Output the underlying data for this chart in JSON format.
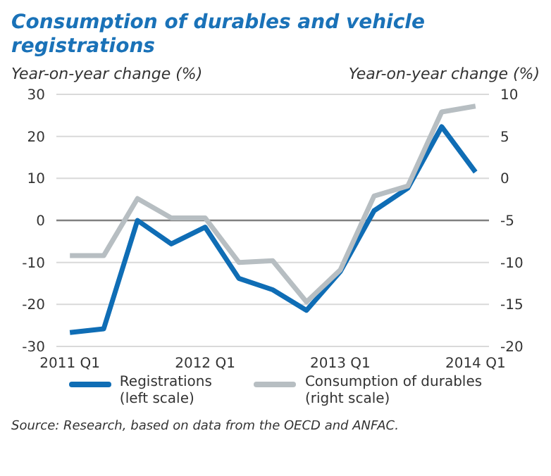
{
  "chart_data": {
    "type": "line",
    "title": "Consumption of durables and vehicle registrations",
    "ylabel": "Year-on-year change (%)",
    "y2label": "Year-on-year change (%)",
    "categories": [
      "2011 Q1",
      null,
      null,
      null,
      "2012 Q1",
      null,
      null,
      null,
      "2013 Q1",
      null,
      null,
      null,
      "2014 Q1"
    ],
    "series": [
      {
        "name": "Registrations\n(left scale)",
        "color": "#0f6db5",
        "values": [
          -26.7,
          -25.8,
          0,
          -5.6,
          -1.6,
          -13.8,
          -16.5,
          -21.4,
          -12.2,
          2.3,
          7.7,
          22.3,
          11.5
        ]
      },
      {
        "name": "Consumption of durables\n(right scale)",
        "color": "#b7bec2",
        "axis": "y2",
        "values": [
          -9.2,
          -9.2,
          -2.4,
          -4.7,
          -4.7,
          -10,
          -9.8,
          -14.7,
          -10.9,
          -2.1,
          -0.9,
          7.9,
          8.6
        ]
      }
    ],
    "ylim": [
      -30,
      30
    ],
    "yticks": [
      -30,
      -20,
      -10,
      0,
      10,
      20,
      30
    ],
    "y2lim": [
      -20,
      10
    ],
    "y2ticks": [
      -20,
      -15,
      -10,
      -5,
      0,
      5,
      10
    ],
    "ref_lines": [
      {
        "axis": "y",
        "value": 0,
        "color": "#808080"
      }
    ],
    "grid": "y",
    "legend": "bottom",
    "marker": "none",
    "line_style": "solid",
    "annotations": [
      "Source: Research, based on data from the OECD and ANFAC."
    ]
  }
}
